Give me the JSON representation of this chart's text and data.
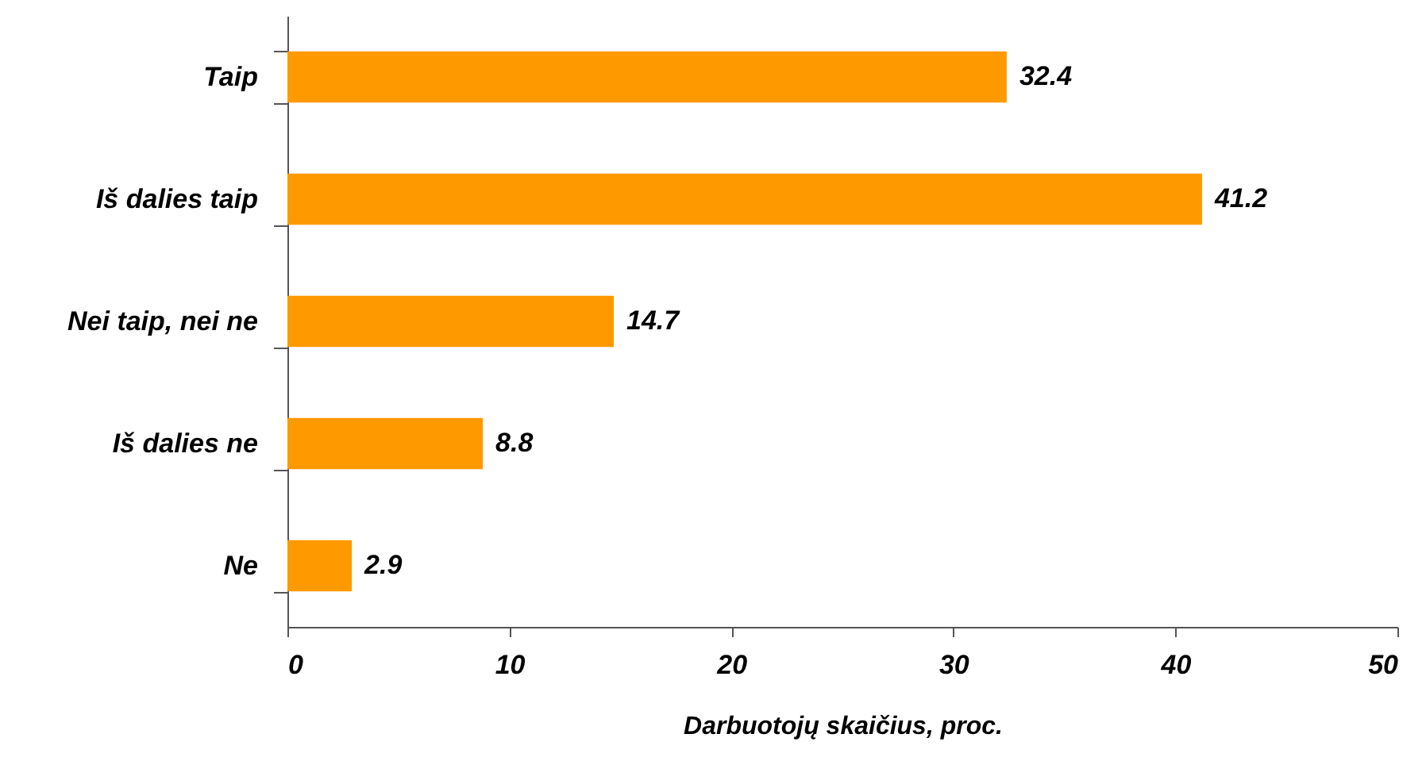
{
  "chart_data": {
    "type": "bar",
    "orientation": "horizontal",
    "xlabel": "Darbuotojų skaičius, proc.",
    "categories": [
      "Taip",
      "Iš dalies taip",
      "Nei taip, nei ne",
      "Iš dalies ne",
      "Ne"
    ],
    "values": [
      32.4,
      41.2,
      14.7,
      8.8,
      2.9
    ],
    "color": "#ff9900",
    "xlim": [
      0,
      50
    ],
    "xticks": [
      0,
      10,
      20,
      30,
      40,
      50
    ],
    "grid": false,
    "data_labels": true
  }
}
